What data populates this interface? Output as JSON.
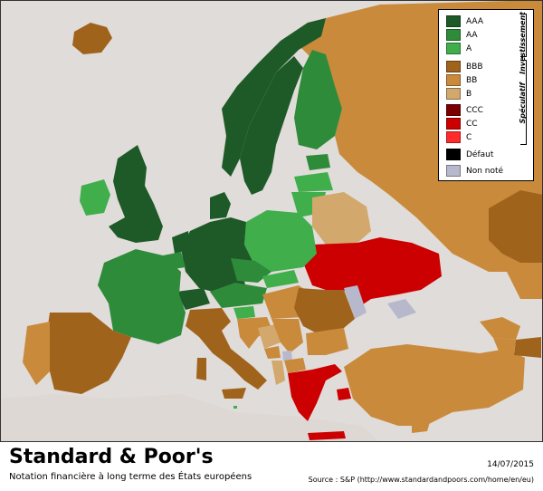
{
  "colors": {
    "sea": "#e0dcd9",
    "outside": "#ded8d4",
    "AAA": "#1e5a28",
    "AA": "#2e8b3a",
    "A": "#3fae4b",
    "BBB": "#a0631c",
    "BB": "#c98a3c",
    "B": "#d2a86c",
    "CCC": "#7a0000",
    "CC": "#cc0000",
    "C": "#ff2a2a",
    "default": "#000000",
    "unrated": "#b8b8cc"
  },
  "legend": {
    "groups": [
      {
        "label": "Investissement"
      },
      {
        "label": "Spéculatif"
      }
    ],
    "items": [
      {
        "label": "AAA",
        "color": "#1e5a28"
      },
      {
        "label": "AA",
        "color": "#2e8b3a"
      },
      {
        "label": "A",
        "color": "#3fae4b"
      },
      {
        "label": "BBB",
        "color": "#a0631c"
      },
      {
        "label": "BB",
        "color": "#c98a3c"
      },
      {
        "label": "B",
        "color": "#d2a86c"
      },
      {
        "label": "CCC",
        "color": "#7a0000"
      },
      {
        "label": "CC",
        "color": "#cc0000"
      },
      {
        "label": "C",
        "color": "#ff2a2a"
      },
      {
        "label": "Défaut",
        "color": "#000000"
      },
      {
        "label": "Non noté",
        "color": "#b8b8cc"
      }
    ]
  },
  "ratings": {
    "Norway": "AAA",
    "Sweden": "AAA",
    "Finland": "AA",
    "Germany": "AAA",
    "Netherlands": "AAA",
    "Luxembourg": "AAA",
    "Switzerland": "AAA",
    "United Kingdom": "AAA",
    "Denmark": "AAA",
    "France": "AA",
    "Belgium": "AA",
    "Austria": "AA",
    "Czech Republic": "AA",
    "Slovakia": "A",
    "Estonia": "AA",
    "Ireland": "A",
    "Poland": "A",
    "Lithuania": "A",
    "Latvia": "A",
    "Slovenia": "A",
    "Malta": "A",
    "Iceland": "BBB",
    "Spain": "BBB",
    "Portugal": "BB",
    "Italy": "BBB",
    "Hungary": "BB",
    "Romania": "BBB",
    "Bulgaria": "BB",
    "Croatia": "BB",
    "Serbia": "BB",
    "Bosnia": "B",
    "Montenegro": "BB",
    "Macedonia": "BB",
    "Albania": "B",
    "Turkey": "BB",
    "Russia": "BB",
    "Belarus": "B",
    "Kazakhstan": "BBB",
    "Ukraine": "CC",
    "Greece": "CC",
    "Cyprus": "BB",
    "Moldova": "Non noté",
    "Kosovo": "Non noté",
    "Georgia": "BB",
    "Azerbaijan": "BBB",
    "Armenia": "BB"
  },
  "footer": {
    "title": "Standard & Poor's",
    "subtitle": "Notation financière à long terme des États européens",
    "date": "14/07/2015",
    "source": "Source : S&P (http://www.standardandpoors.com/home/en/eu)"
  }
}
